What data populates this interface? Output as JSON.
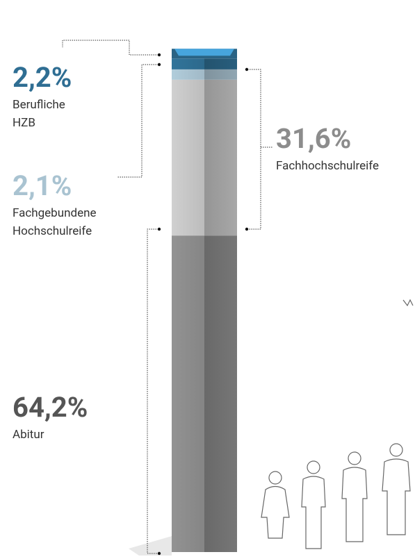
{
  "chart_data": {
    "type": "stacked-column",
    "series": [
      {
        "name": "Abitur",
        "color": "#8c8c8c",
        "values": [
          64.2
        ],
        "value_labels": [
          "64,2%"
        ]
      },
      {
        "name": "Fachhochschulreife",
        "color": "#c6c6c6",
        "values": [
          31.6
        ],
        "value_labels": [
          "31,6%"
        ]
      },
      {
        "name": "Fachgebundene Hochschulreife",
        "color": "#a9c3d1",
        "values": [
          2.1
        ],
        "value_labels": [
          "2,1%"
        ]
      },
      {
        "name": "Berufliche HZB",
        "color": "#2f6e93",
        "values": [
          2.2
        ],
        "value_labels": [
          "2,2%"
        ]
      }
    ]
  }
}
